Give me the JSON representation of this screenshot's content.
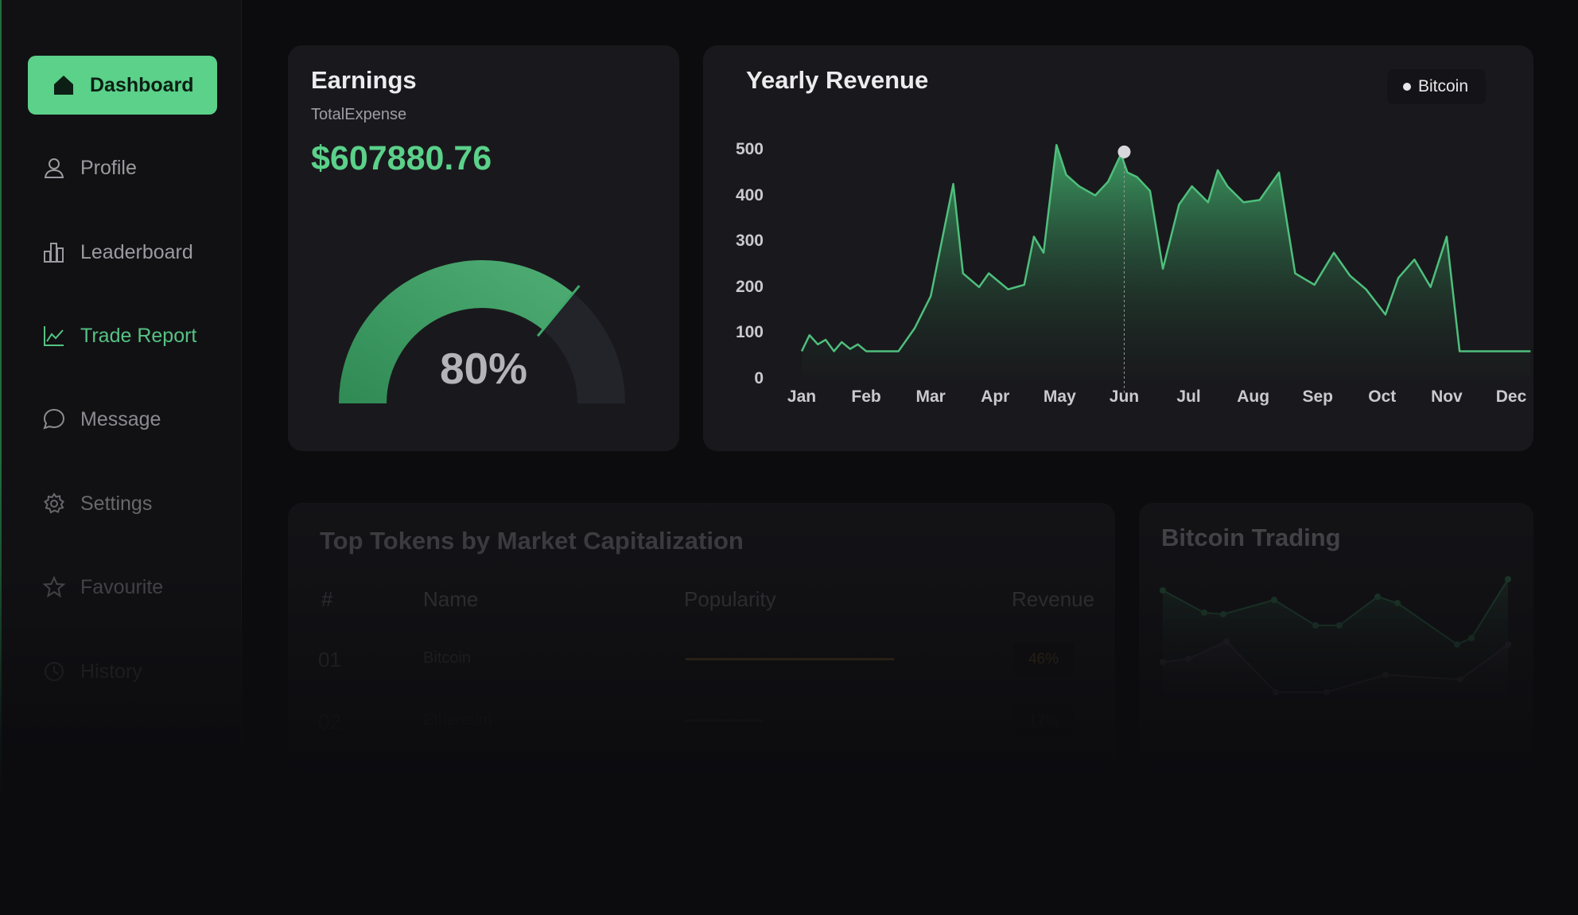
{
  "sidebar": {
    "items": [
      {
        "label": "Dashboard",
        "icon": "home-icon"
      },
      {
        "label": "Profile",
        "icon": "user-icon"
      },
      {
        "label": "Leaderboard",
        "icon": "bar-chart-icon"
      },
      {
        "label": "Trade Report",
        "icon": "line-chart-icon"
      },
      {
        "label": "Message",
        "icon": "chat-bubble-icon"
      },
      {
        "label": "Settings",
        "icon": "gear-icon"
      },
      {
        "label": "Favourite",
        "icon": "star-icon"
      },
      {
        "label": "History",
        "icon": "clock-icon"
      }
    ]
  },
  "earnings": {
    "title": "Earnings",
    "subtitle": "TotalExpense",
    "amount": "$607880.76",
    "gauge_label": "80%",
    "gauge_value": 0.8
  },
  "revenue": {
    "title": "Yearly Revenue",
    "legend": "Bitcoin"
  },
  "chart_data": {
    "type": "area",
    "title": "Yearly Revenue",
    "categories": [
      "Jan",
      "Feb",
      "Mar",
      "Apr",
      "May",
      "Jun",
      "Jul",
      "Aug",
      "Sep",
      "Oct",
      "Nov",
      "Dec"
    ],
    "y_ticks": [
      "500",
      "400",
      "300",
      "200",
      "100",
      "0"
    ],
    "ylim": [
      0,
      500
    ],
    "legend_position": "top-right",
    "series": [
      {
        "name": "Bitcoin",
        "color": "#5bd18a",
        "x": [
          0,
          0.12,
          0.25,
          0.37,
          0.5,
          0.62,
          0.75,
          0.87,
          1,
          1.25,
          1.5,
          1.75,
          2,
          2.1,
          2.35,
          2.5,
          2.75,
          2.9,
          3.2,
          3.45,
          3.6,
          3.75,
          3.95,
          4.1,
          4.3,
          4.55,
          4.75,
          4.95,
          5.05,
          5.2,
          5.4,
          5.6,
          5.85,
          6.05,
          6.3,
          6.45,
          6.6,
          6.85,
          7.1,
          7.4,
          7.65,
          7.95,
          8.25,
          8.5,
          8.75,
          9.05,
          9.25,
          9.5,
          9.75,
          10.0,
          10.2,
          10.45,
          10.7,
          10.95,
          11.1,
          11.3
        ],
        "values": [
          60,
          95,
          75,
          85,
          60,
          80,
          65,
          75,
          60,
          60,
          60,
          110,
          180,
          250,
          425,
          230,
          200,
          230,
          195,
          205,
          310,
          275,
          510,
          445,
          420,
          400,
          430,
          490,
          450,
          440,
          410,
          240,
          380,
          420,
          385,
          455,
          420,
          385,
          390,
          450,
          230,
          205,
          275,
          225,
          195,
          140,
          220,
          260,
          200,
          310,
          60,
          60,
          60,
          60,
          60,
          60
        ]
      }
    ],
    "hover": {
      "category": "Jun",
      "value": 495
    }
  },
  "tokens": {
    "title": "Top Tokens by Market Capitalization",
    "headers": {
      "num": "#",
      "name": "Name",
      "popularity": "Popularity",
      "revenue": "Revenue"
    },
    "rows": [
      {
        "num": "01",
        "name": "Bitcoin",
        "popularity": 0.46,
        "revenue": "46%",
        "color": "#c8902f"
      },
      {
        "num": "02",
        "name": "Ethereum",
        "popularity": 0.17,
        "revenue": "17%",
        "color": "#5bd18a"
      }
    ]
  },
  "bitcoin_trading": {
    "title": "Bitcoin Trading"
  }
}
